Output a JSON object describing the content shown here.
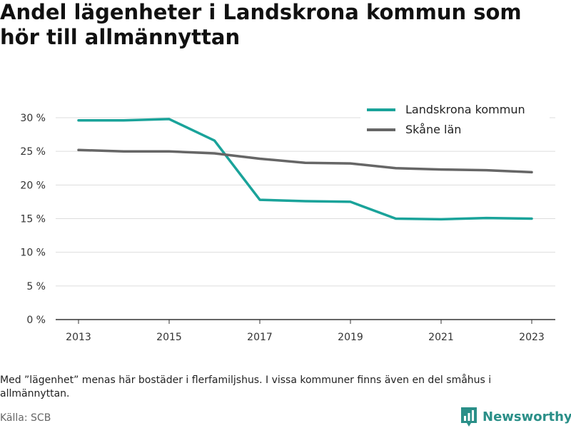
{
  "title": "Andel lägenheter i Landskrona kommun som hör till allmännyttan",
  "note": "Med ”lägenhet” menas här bostäder i flerfamiljshus. I vissa kommuner finns även en del småhus i allmännyttan.",
  "source": "Källa: SCB",
  "brand": {
    "name": "Newsworthy",
    "icon": "bar-chart-logo-icon",
    "color": "#2a8f88"
  },
  "chart_data": {
    "type": "line",
    "title": "Andel lägenheter i Landskrona kommun som hör till allmännyttan",
    "x": [
      2013,
      2014,
      2015,
      2016,
      2017,
      2018,
      2019,
      2020,
      2021,
      2022,
      2023
    ],
    "series": [
      {
        "name": "Landskrona kommun",
        "color": "#1aa39a",
        "values": [
          29.6,
          29.6,
          29.8,
          26.6,
          17.8,
          17.6,
          17.5,
          15.0,
          14.9,
          15.1,
          15.0
        ]
      },
      {
        "name": "Skåne län",
        "color": "#666666",
        "values": [
          25.2,
          25.0,
          25.0,
          24.7,
          23.9,
          23.3,
          23.2,
          22.5,
          22.3,
          22.2,
          21.9
        ]
      }
    ],
    "xticks": [
      "2013",
      "2015",
      "2017",
      "2019",
      "2021",
      "2023"
    ],
    "yticks": [
      "0 %",
      "5 %",
      "10 %",
      "15 %",
      "20 %",
      "25 %",
      "30 %"
    ],
    "xlabel": "",
    "ylabel": "",
    "ylim": [
      0,
      30
    ],
    "grid": true,
    "legend_position": "top-right"
  }
}
